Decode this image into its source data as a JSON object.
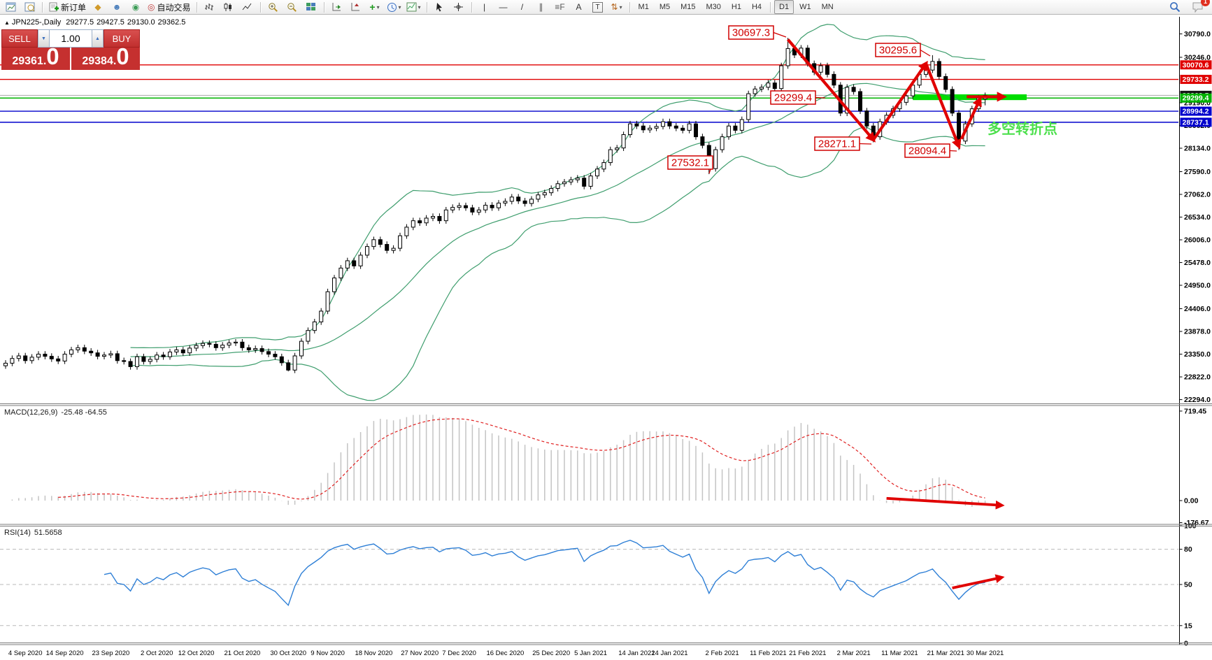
{
  "toolbar": {
    "items": [
      {
        "kind": "icon",
        "name": "new-chart-button",
        "icon": "newchart"
      },
      {
        "kind": "icon",
        "name": "profiles-button",
        "icon": "profiles"
      },
      {
        "kind": "sep"
      },
      {
        "kind": "labeled",
        "name": "new-order-button",
        "icon": "neworder",
        "label": "新订单"
      },
      {
        "kind": "icon",
        "name": "market-watch-button",
        "glyph": "◆",
        "color": "#d19a2a"
      },
      {
        "kind": "icon",
        "name": "community-button",
        "glyph": "☻",
        "color": "#4a7ebb"
      },
      {
        "kind": "icon",
        "name": "signals-button",
        "glyph": "◉",
        "color": "#3c9d57"
      },
      {
        "kind": "labeled",
        "name": "autotrade-button",
        "glyph": "◎",
        "color": "#c23a3a",
        "label": "自动交易"
      },
      {
        "kind": "sep"
      },
      {
        "kind": "icon",
        "name": "bar-chart-button",
        "icon": "bars"
      },
      {
        "kind": "icon",
        "name": "candle-chart-button",
        "icon": "candles"
      },
      {
        "kind": "icon",
        "name": "line-chart-button",
        "icon": "linechart"
      },
      {
        "kind": "sep"
      },
      {
        "kind": "icon",
        "name": "zoom-in-button",
        "icon": "zoomin"
      },
      {
        "kind": "icon",
        "name": "zoom-out-button",
        "icon": "zoomout"
      },
      {
        "kind": "icon",
        "name": "tile-windows-button",
        "icon": "tiles"
      },
      {
        "kind": "sep"
      },
      {
        "kind": "icon",
        "name": "auto-scroll-button",
        "icon": "scrollend"
      },
      {
        "kind": "icon",
        "name": "chart-shift-button",
        "icon": "shift"
      },
      {
        "kind": "icon",
        "name": "indicators-button",
        "glyph": "+",
        "color": "#1d9a1d",
        "caret": true
      },
      {
        "kind": "icon",
        "name": "periods-button",
        "icon": "clock",
        "caret": true
      },
      {
        "kind": "icon",
        "name": "templates-button",
        "icon": "template",
        "caret": true
      },
      {
        "kind": "sep"
      },
      {
        "kind": "icon",
        "name": "cursor-button",
        "icon": "cursor"
      },
      {
        "kind": "icon",
        "name": "crosshair-button",
        "icon": "crosshair"
      },
      {
        "kind": "sep"
      },
      {
        "kind": "icon",
        "name": "vline-button",
        "glyph": "|",
        "color": "#333"
      },
      {
        "kind": "icon",
        "name": "hline-button",
        "glyph": "—",
        "color": "#333"
      },
      {
        "kind": "icon",
        "name": "trendline-button",
        "glyph": "/",
        "color": "#333"
      },
      {
        "kind": "icon",
        "name": "channel-button",
        "glyph": "∥",
        "color": "#555"
      },
      {
        "kind": "icon",
        "name": "fibonacci-button",
        "glyph": "≡F",
        "color": "#555"
      },
      {
        "kind": "icon",
        "name": "text-button",
        "glyph": "A",
        "color": "#333"
      },
      {
        "kind": "icon",
        "name": "text-label-button",
        "glyph": "T",
        "color": "#333",
        "boxed": true
      },
      {
        "kind": "icon",
        "name": "arrows-button",
        "glyph": "⇅",
        "color": "#b5651d",
        "caret": true
      },
      {
        "kind": "sep"
      }
    ],
    "timeframes": {
      "list": [
        "M1",
        "M5",
        "M15",
        "M30",
        "H1",
        "H4",
        "D1",
        "W1",
        "MN"
      ],
      "active": "D1",
      "divider_before": "D1"
    },
    "notifications_badge": "1"
  },
  "header": {
    "collapse_icon": "▲",
    "symbol": "JPN225-,Daily",
    "open": "29277.5",
    "high": "29427.5",
    "low": "29130.0",
    "close": "29362.5"
  },
  "trade_panel": {
    "sell_label": "SELL",
    "buy_label": "BUY",
    "volume": "1.00",
    "down_glyph": "▼",
    "up_glyph": "▲",
    "sell_price": "29361",
    "sell_dec": "0",
    "buy_price": "29384",
    "buy_dec": "0"
  },
  "chart_data": {
    "type": "candlestick",
    "symbol": "JPN225-,Daily",
    "x_labels": [
      [
        "4 Sep 2020",
        3
      ],
      [
        "14 Sep 2020",
        9
      ],
      [
        "23 Sep 2020",
        16
      ],
      [
        "2 Oct 2020",
        23
      ],
      [
        "12 Oct 2020",
        29
      ],
      [
        "21 Oct 2020",
        36
      ],
      [
        "30 Oct 2020",
        43
      ],
      [
        "9 Nov 2020",
        49
      ],
      [
        "18 Nov 2020",
        56
      ],
      [
        "27 Nov 2020",
        63
      ],
      [
        "7 Dec 2020",
        69
      ],
      [
        "16 Dec 2020",
        76
      ],
      [
        "25 Dec 2020",
        83
      ],
      [
        "5 Jan 2021",
        89
      ],
      [
        "14 Jan 2021",
        96
      ],
      [
        "24 Jan 2021",
        101
      ],
      [
        "2 Feb 2021",
        109
      ],
      [
        "11 Feb 2021",
        116
      ],
      [
        "21 Feb 2021",
        122
      ],
      [
        "2 Mar 2021",
        129
      ],
      [
        "11 Mar 2021",
        136
      ],
      [
        "21 Mar 2021",
        143
      ],
      [
        "30 Mar 2021",
        149
      ]
    ],
    "main": {
      "closes": [
        23140,
        23250,
        23310,
        23200,
        23280,
        23350,
        23300,
        23240,
        23190,
        23350,
        23450,
        23500,
        23420,
        23380,
        23300,
        23330,
        23360,
        23200,
        23180,
        23060,
        23290,
        23180,
        23230,
        23330,
        23290,
        23400,
        23450,
        23380,
        23490,
        23550,
        23600,
        23580,
        23500,
        23560,
        23610,
        23630,
        23500,
        23450,
        23480,
        23410,
        23350,
        23290,
        23150,
        22980,
        23310,
        23650,
        23900,
        24100,
        24350,
        24800,
        25120,
        25350,
        25520,
        25400,
        25650,
        25850,
        26010,
        25900,
        25760,
        25810,
        26100,
        26300,
        26450,
        26400,
        26510,
        26550,
        26450,
        26700,
        26760,
        26800,
        26750,
        26650,
        26700,
        26810,
        26750,
        26860,
        26900,
        27000,
        26910,
        26850,
        26950,
        27050,
        27100,
        27200,
        27310,
        27350,
        27400,
        27440,
        27250,
        27490,
        27650,
        27800,
        28100,
        28140,
        28450,
        28700,
        28650,
        28560,
        28600,
        28640,
        28750,
        28650,
        28600,
        28550,
        28700,
        28400,
        28200,
        27660,
        28100,
        28400,
        28650,
        28550,
        28800,
        29400,
        29510,
        29550,
        29650,
        29520,
        30050,
        30450,
        30300,
        30460,
        30100,
        29900,
        30050,
        29850,
        29600,
        28950,
        29550,
        29450,
        29000,
        28650,
        28400,
        28750,
        28900,
        29050,
        29200,
        29350,
        29600,
        29850,
        29950,
        30150,
        29800,
        29500,
        28950,
        28300,
        28700,
        29050,
        29300,
        29362.5
      ],
      "overrides": {
        "43": {
          "l": 22950
        },
        "107": {
          "l": 27532.1
        },
        "119": {
          "h": 30697.3
        },
        "132": {
          "l": 28271.1
        },
        "141": {
          "h": 30295.6
        },
        "145": {
          "l": 28094.4
        },
        "149": {
          "o": 29277.5,
          "h": 29427.5,
          "l": 29130.0,
          "c": 29362.5
        }
      },
      "bollinger_period": 20,
      "bollinger_color": "#3f9e6e",
      "y_ticks": [
        "30790.0",
        "30246.0",
        "29190.0",
        "28662.0",
        "28134.0",
        "27590.0",
        "27062.0",
        "26534.0",
        "26006.0",
        "25478.0",
        "24950.0",
        "24406.0",
        "23878.0",
        "23350.0",
        "22822.0",
        "22294.0"
      ],
      "price_lines": [
        {
          "price": 30070.6,
          "color": "#e00000",
          "badge": "30070.6",
          "badge_bg": "#e00000"
        },
        {
          "price": 29733.2,
          "color": "#e00000",
          "badge": "29733.2",
          "badge_bg": "#e00000"
        },
        {
          "price": 29362.5,
          "color": "#a8a8a8",
          "badge": "29362.5",
          "badge_bg": "#151515"
        },
        {
          "price": 29299.4,
          "color": "#00b200",
          "badge": "29299.4",
          "badge_bg": "#00b200"
        },
        {
          "price": 28994.2,
          "color": "#0000cc",
          "badge": "28994.2",
          "badge_bg": "#0000cc"
        },
        {
          "price": 28737.1,
          "color": "#0000cc",
          "badge": "28737.1",
          "badge_bg": "#0000cc"
        }
      ],
      "highlight_zone": {
        "from_i": 138,
        "to_x": 1468,
        "top_price": 29386,
        "bottom_price": 29252,
        "color": "#00dd00"
      },
      "trend_arrows": [
        {
          "from": [
            119,
            30660
          ],
          "to": [
            132,
            28330
          ]
        },
        {
          "from": [
            132,
            28330
          ],
          "to": [
            140,
            30100
          ]
        },
        {
          "from": [
            140,
            30100
          ],
          "to": [
            145,
            28180
          ]
        },
        {
          "from": [
            145.4,
            28350
          ],
          "to": [
            148.2,
            29270
          ]
        },
        {
          "from": [
            146.2,
            29330
          ],
          "to": [
            151.8,
            29330
          ]
        }
      ],
      "price_labels": [
        {
          "text": "30697.3",
          "bx": 1042,
          "by": 37,
          "ax": 1124,
          "ay": 53
        },
        {
          "text": "30295.6",
          "bx": 1252,
          "by": 62,
          "ax": 1330,
          "ay": 80
        },
        {
          "text": "29299.4",
          "bx": 1102,
          "by": 130,
          "ax": 1180,
          "ay": 140
        },
        {
          "text": "28271.1",
          "bx": 1165,
          "by": 196,
          "ax": 1246,
          "ay": 206
        },
        {
          "text": "28094.4",
          "bx": 1294,
          "by": 206,
          "ax": 1368,
          "ay": 216
        },
        {
          "text": "27532.1",
          "bx": 955,
          "by": 223,
          "ax": 1014,
          "ay": 248
        }
      ],
      "note": {
        "text": "多空转折点",
        "x": 1412,
        "y": 191,
        "color": "#4ce04c"
      }
    },
    "macd": {
      "label": "MACD(12,26,9)",
      "values": "-25.48 -64.55",
      "y_ticks": [
        "719.45",
        "0.00",
        "-176.67"
      ],
      "histogram_color": "#c4c4c4",
      "signal_color": "#e02020",
      "arrow": {
        "from": [
          134,
          18
        ],
        "to": [
          151.5,
          -38
        ]
      }
    },
    "rsi": {
      "label": "RSI(14)",
      "value": "51.5658",
      "levels": [
        80,
        50,
        15
      ],
      "y_ticks": [
        "100",
        "80",
        "50",
        "15",
        "0"
      ],
      "line_color": "#2e7fd6",
      "arrow": {
        "from": [
          144,
          47
        ],
        "to": [
          151.5,
          56
        ]
      }
    }
  }
}
